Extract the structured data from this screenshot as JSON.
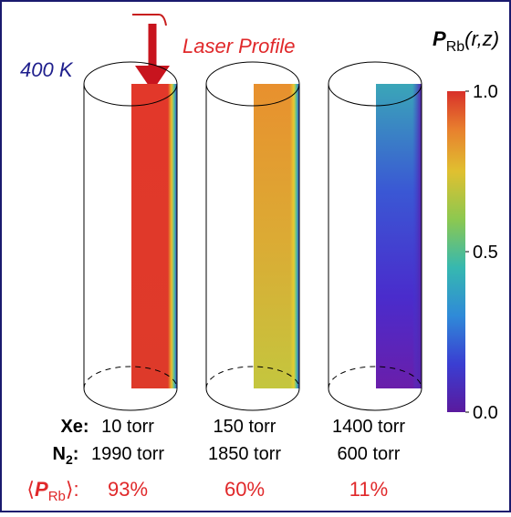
{
  "labels": {
    "laser": "Laser Profile",
    "temperature": "400 K"
  },
  "colorbar": {
    "title": {
      "symbol": "P",
      "subscript": "Rb",
      "args": "(r,z)"
    },
    "range": [
      0,
      1
    ],
    "ticks": [
      {
        "value": 1,
        "label": "1.0"
      },
      0.5,
      {
        "value": 0,
        "label": "0.0"
      }
    ]
  },
  "rows": {
    "xe": {
      "label": "Xe:",
      "values": [
        "10 torr",
        "150 torr",
        "1400 torr"
      ]
    },
    "n2": {
      "label": "N",
      "subscript": "2",
      "suffix": ":",
      "values": [
        "1990 torr",
        "1850 torr",
        "600 torr"
      ]
    },
    "polarization": {
      "open": "⟨",
      "symbol": "P",
      "subscript": "Rb",
      "close": "⟩:",
      "values": [
        "93%",
        "60%",
        "11%"
      ]
    }
  }
}
